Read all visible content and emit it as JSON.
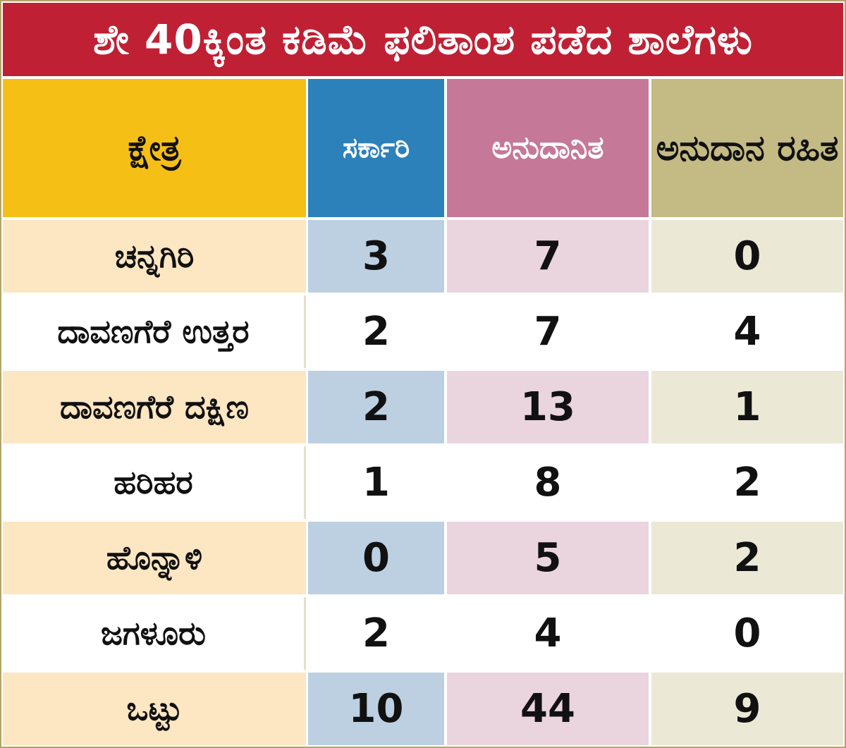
{
  "title": "ಶೇ 40ಕ್ಕಿಂತ ಕಡಿಮೆ ಫಲಿತಾಂಶ ಪಡೆದ ಶಾಲೆಗಳು",
  "colors": {
    "title_bg": "#bf2034",
    "col_area": "#f6bf16",
    "col_govt": "#2d81ba",
    "col_aided": "#c57898",
    "col_unaided": "#c4ba84"
  },
  "chart_data": {
    "type": "table",
    "title": "ಶೇ 40ಕ್ಕಿಂತ ಕಡಿಮೆ ಫಲಿತಾಂಶ ಪಡೆದ ಶಾಲೆಗಳು",
    "columns": [
      "ಕ್ಷೇತ್ರ",
      "ಸರ್ಕಾರಿ",
      "ಅನುದಾನಿತ",
      "ಅನುದಾನ ರಹಿತ"
    ],
    "rows": [
      {
        "name": "ಚನ್ನಗಿರಿ",
        "values": [
          "3",
          "7",
          "0"
        ]
      },
      {
        "name": "ದಾವಣಗೆರೆ ಉತ್ತರ",
        "values": [
          "2",
          "7",
          "4"
        ]
      },
      {
        "name": "ದಾವಣಗೆರೆ ದಕ್ಷಿಣ",
        "values": [
          "2",
          "13",
          "1"
        ]
      },
      {
        "name": "ಹರಿಹರ",
        "values": [
          "1",
          "8",
          "2"
        ]
      },
      {
        "name": "ಹೊನ್ನಾಳಿ",
        "values": [
          "0",
          "5",
          "2"
        ]
      },
      {
        "name": "ಜಗಳೂರು",
        "values": [
          "2",
          "4",
          "0"
        ]
      },
      {
        "name": "ಒಟ್ಟು",
        "values": [
          "10",
          "44",
          "9"
        ]
      }
    ]
  }
}
